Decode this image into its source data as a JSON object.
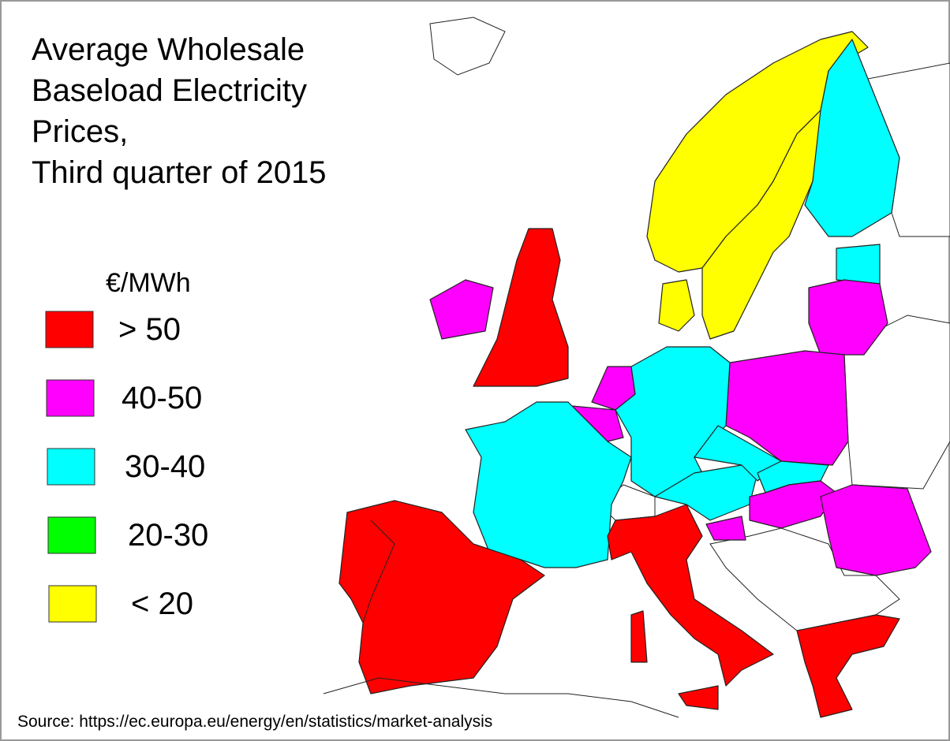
{
  "title_lines": [
    "Average Wholesale",
    "Baseload Electricity",
    "Prices,",
    "Third quarter of 2015"
  ],
  "legend": {
    "unit": "€/MWh",
    "items": [
      {
        "label": "> 50",
        "color": "#ff0000"
      },
      {
        "label": "40-50",
        "color": "#ff00ff"
      },
      {
        "label": "30-40",
        "color": "#00ffff"
      },
      {
        "label": "20-30",
        "color": "#00ff00"
      },
      {
        "label": "< 20",
        "color": "#ffff00"
      }
    ]
  },
  "source": "Source: https://ec.europa.eu/energy/en/statistics/market-analysis"
}
